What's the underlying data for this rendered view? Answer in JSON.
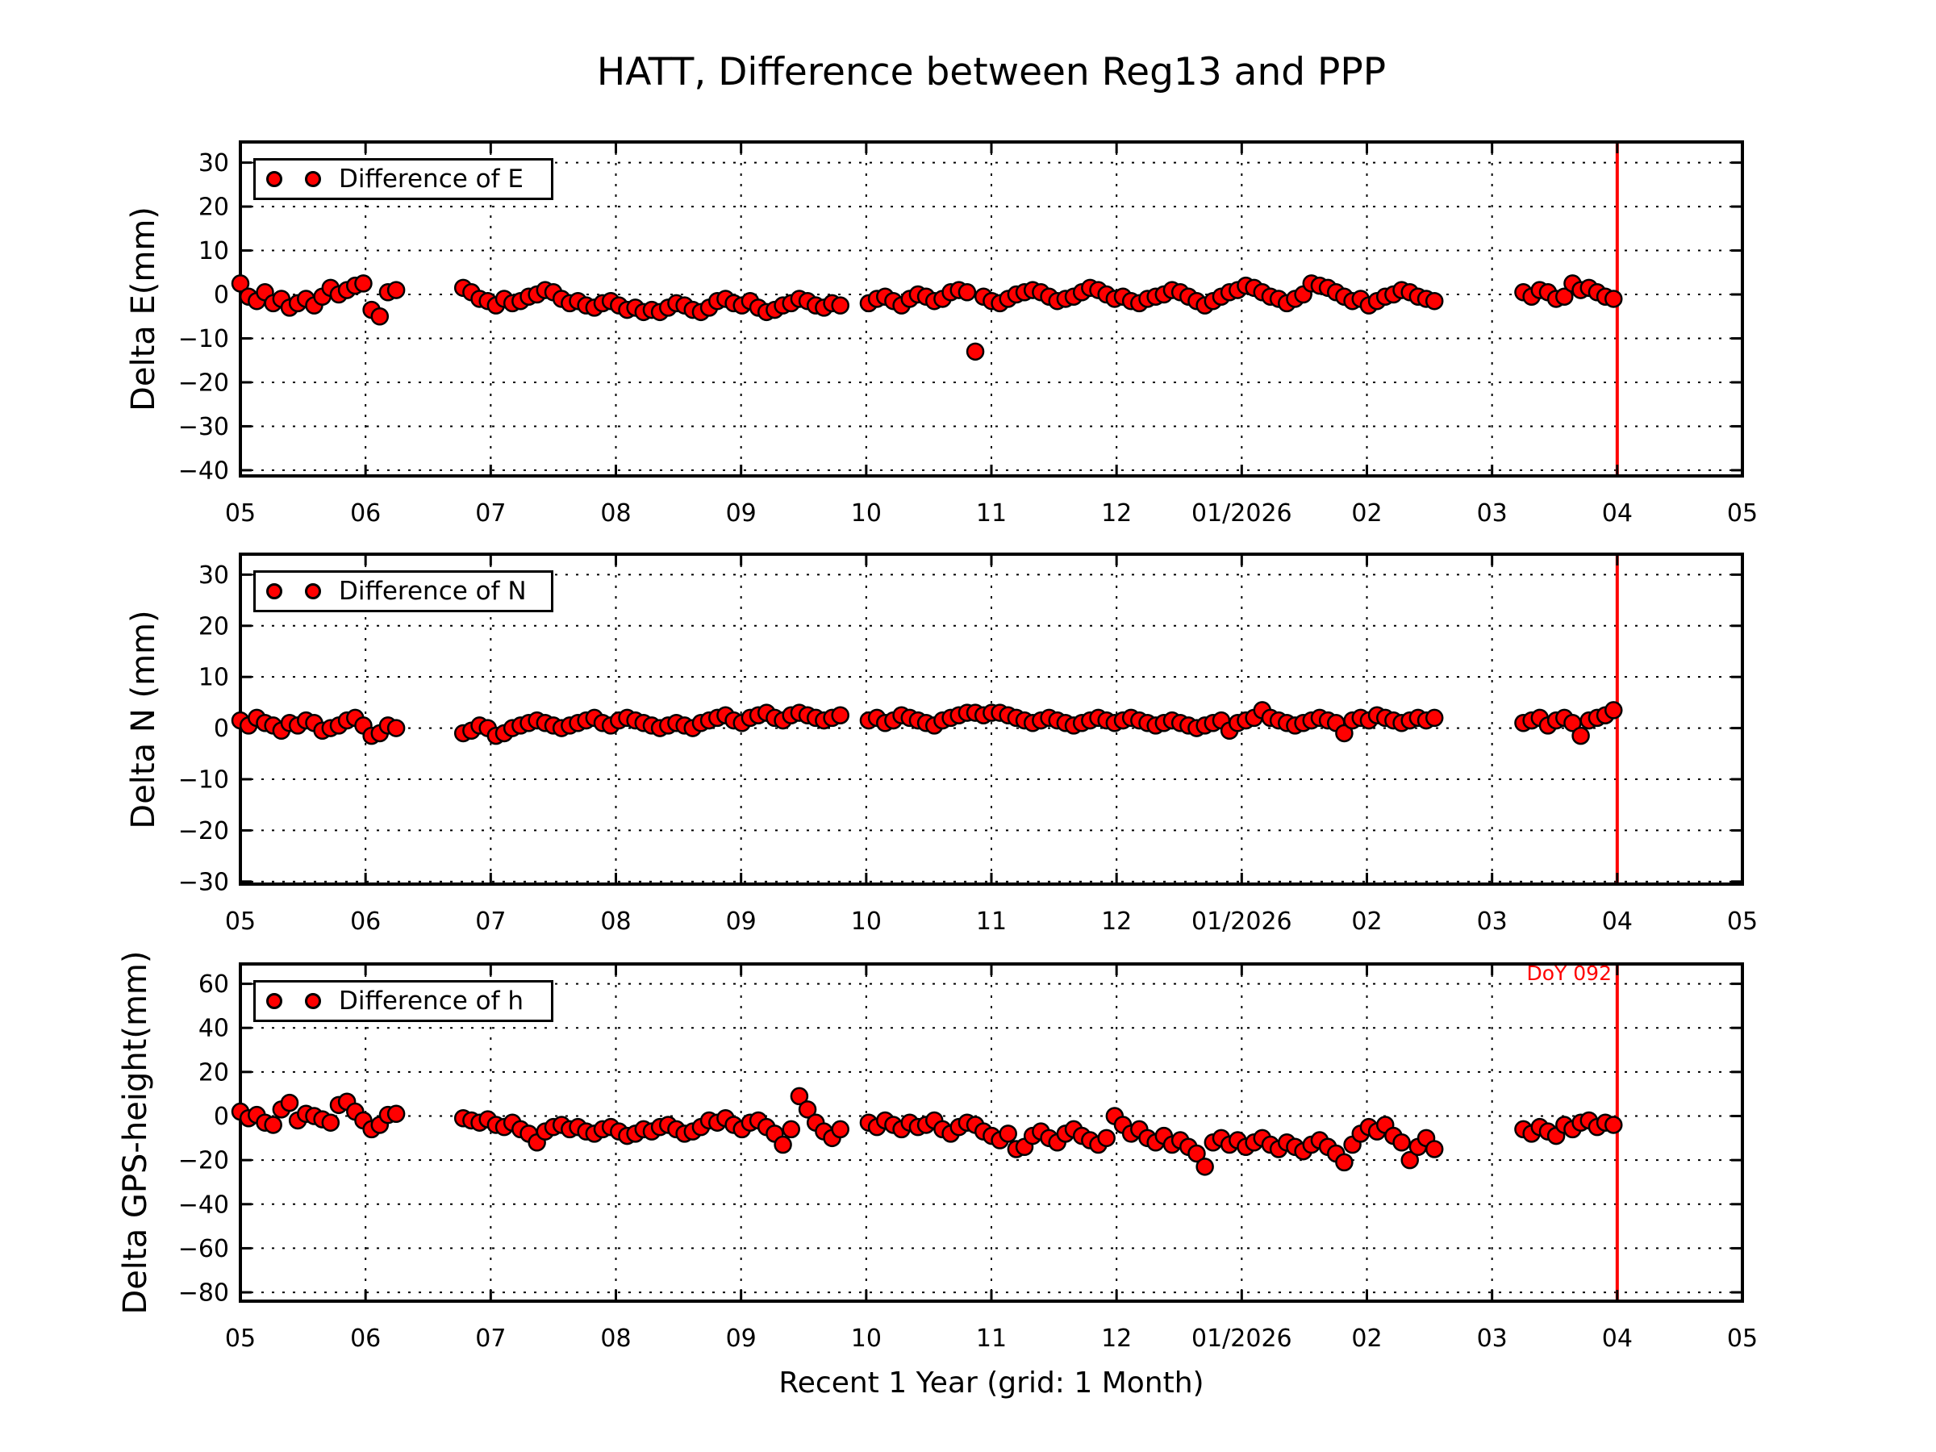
{
  "figure": {
    "title": "HATT, Difference between Reg13 and PPP",
    "xlabel": "Recent 1 Year (grid: 1 Month)",
    "background_color": "#ffffff",
    "marker_color": "#ff0000",
    "marker_edge_color": "#000000",
    "grid_style": "dotted black, 1 gridline per month / per y-tick",
    "vline": {
      "x": 16,
      "color": "#ff0000",
      "label": "DoY 092"
    }
  },
  "annotation": {
    "text": "DoY 092",
    "color": "#ff0000"
  },
  "x_axis": {
    "tick_values": [
      5,
      6,
      7,
      8,
      9,
      10,
      11,
      12,
      13,
      14,
      15,
      16,
      17
    ],
    "tick_labels": [
      "05",
      "06",
      "07",
      "08",
      "09",
      "10",
      "11",
      "12",
      "01/2026",
      "02",
      "03",
      "04",
      "05"
    ],
    "range": [
      5,
      17
    ]
  },
  "chart_data": [
    {
      "type": "scatter",
      "name": "delta-e",
      "ylabel": "Delta E(mm)",
      "legend_label": "Difference of E",
      "ylim": [
        -41.3,
        34.7
      ],
      "yticks": [
        30,
        20,
        10,
        0,
        -10,
        -20,
        -30,
        -40
      ],
      "x_unit": "months, 5=May 2025 ... 16=Apr 2026 (x_step in months ~ 2 days)",
      "segments": [
        {
          "x_start": 5.0,
          "x_step": 0.0655,
          "y": [
            2.5,
            -0.5,
            -1.5,
            0.5,
            -2,
            -1,
            -3,
            -2,
            -1,
            -2.5,
            -0.5,
            1.5,
            0,
            1,
            2,
            2.5,
            -3.5,
            -5,
            0.5,
            1
          ]
        },
        {
          "x_start": 6.78,
          "x_step": 0.0655,
          "y": [
            1.5,
            0.5,
            -1,
            -1.5,
            -2.5,
            -1,
            -2,
            -1.5,
            -0.5,
            0,
            1,
            0.5,
            -1,
            -2,
            -1.5,
            -2.5,
            -3,
            -2,
            -1.5,
            -2.5,
            -3.5,
            -3,
            -4,
            -3.5,
            -4,
            -3,
            -2,
            -2.5,
            -3.5,
            -4,
            -3,
            -1.5,
            -1,
            -2,
            -2.5,
            -1.5,
            -3,
            -4,
            -3.5,
            -2.5,
            -2,
            -1,
            -1.5,
            -2.5,
            -3,
            -2,
            -2.5
          ]
        },
        {
          "x_start": 10.02,
          "x_step": 0.0655,
          "y": [
            -2,
            -1,
            -0.5,
            -1.5,
            -2.5,
            -1,
            0,
            -0.5,
            -1.5,
            -1,
            0.5,
            1,
            0.5,
            -13,
            -0.5,
            -1.5,
            -2,
            -1,
            0,
            0.5,
            1,
            0.5,
            -0.5,
            -1.5,
            -1,
            -0.5,
            0.5,
            1.5,
            1,
            0,
            -1,
            -0.5,
            -1.5,
            -2,
            -1,
            -0.5,
            0,
            1,
            0.5,
            -0.5,
            -1.5,
            -2.5,
            -1.5,
            -0.5,
            0.5,
            1,
            2,
            1.5,
            0.5,
            -0.5,
            -1,
            -2,
            -1,
            0,
            2.5,
            2,
            1.5,
            0.5,
            -0.5,
            -1.5,
            -1,
            -2.5,
            -1.5,
            -0.5,
            0,
            1,
            0.5,
            -0.5,
            -1,
            -1.5
          ]
        },
        {
          "x_start": 15.25,
          "x_step": 0.0655,
          "y": [
            0.5,
            -0.5,
            1,
            0.5,
            -1,
            -0.5,
            2.5,
            1,
            1.5,
            0.5,
            -0.5,
            -1
          ]
        }
      ]
    },
    {
      "type": "scatter",
      "name": "delta-n",
      "ylabel": "Delta N (mm)",
      "legend_label": "Difference of N",
      "ylim": [
        -30.5,
        34
      ],
      "yticks": [
        30,
        20,
        10,
        0,
        -10,
        -20,
        -30
      ],
      "x_unit": "months, 5=May 2025 ... 16=Apr 2026 (x_step in months ~ 2 days)",
      "segments": [
        {
          "x_start": 5.0,
          "x_step": 0.0655,
          "y": [
            1.5,
            0.5,
            2,
            1,
            0.5,
            -0.5,
            1,
            0.5,
            1.5,
            1,
            -0.5,
            0,
            0.5,
            1.5,
            2,
            0.5,
            -1.5,
            -1,
            0.5,
            0
          ]
        },
        {
          "x_start": 6.78,
          "x_step": 0.0655,
          "y": [
            -1,
            -0.5,
            0.5,
            0,
            -1.5,
            -1,
            0,
            0.5,
            1,
            1.5,
            1,
            0.5,
            0,
            0.5,
            1,
            1.5,
            2,
            1,
            0.5,
            1.5,
            2,
            1.5,
            1,
            0.5,
            0,
            0.5,
            1,
            0.5,
            0,
            1,
            1.5,
            2,
            2.5,
            1.5,
            1,
            2,
            2.5,
            3,
            2,
            1.5,
            2.5,
            3,
            2.5,
            2,
            1.5,
            2,
            2.5
          ]
        },
        {
          "x_start": 10.02,
          "x_step": 0.0655,
          "y": [
            1.5,
            2,
            1,
            1.5,
            2.5,
            2,
            1.5,
            1,
            0.5,
            1.5,
            2,
            2.5,
            3,
            3,
            2.5,
            3,
            3,
            2.5,
            2,
            1.5,
            1,
            1.5,
            2,
            1.5,
            1,
            0.5,
            1,
            1.5,
            2,
            1.5,
            1,
            1.5,
            2,
            1.5,
            1,
            0.5,
            1,
            1.5,
            1,
            0.5,
            0,
            0.5,
            1,
            1.5,
            -0.5,
            1,
            1.5,
            2,
            3.5,
            2,
            1.5,
            1,
            0.5,
            1,
            1.5,
            2,
            1.5,
            1,
            -1,
            1.5,
            2,
            1.5,
            2.5,
            2,
            1.5,
            1,
            1.5,
            2,
            1.5,
            2
          ]
        },
        {
          "x_start": 15.25,
          "x_step": 0.0655,
          "y": [
            1,
            1.5,
            2,
            0.5,
            1.5,
            2,
            1,
            -1.5,
            1.5,
            2,
            2.5,
            3.5
          ]
        }
      ]
    },
    {
      "type": "scatter",
      "name": "delta-h",
      "ylabel": "Delta GPS-height(mm)",
      "legend_label": "Difference of h",
      "ylim": [
        -84,
        69
      ],
      "yticks": [
        60,
        40,
        20,
        0,
        -20,
        -40,
        -60,
        -80
      ],
      "x_unit": "months, 5=May 2025 ... 16=Apr 2026 (x_step in months ~ 2 days)",
      "segments": [
        {
          "x_start": 5.0,
          "x_step": 0.0655,
          "y": [
            2,
            -1,
            0.5,
            -3,
            -4,
            3,
            6,
            -2,
            1,
            0,
            -1.5,
            -3,
            5,
            6.5,
            2,
            -2,
            -6,
            -4,
            0.5,
            1
          ]
        },
        {
          "x_start": 6.78,
          "x_step": 0.0655,
          "y": [
            -1,
            -2,
            -3,
            -1.5,
            -4,
            -5,
            -3,
            -6,
            -8,
            -12,
            -7,
            -5,
            -4,
            -6,
            -5,
            -7,
            -8,
            -6,
            -5,
            -7,
            -9,
            -8,
            -6,
            -7,
            -5,
            -4,
            -6,
            -8,
            -7,
            -5,
            -2,
            -3,
            -1,
            -4,
            -6,
            -3,
            -2,
            -5,
            -8,
            -13,
            -6,
            9,
            3,
            -3,
            -7,
            -10,
            -6
          ]
        },
        {
          "x_start": 10.02,
          "x_step": 0.0655,
          "y": [
            -3,
            -5,
            -2,
            -4,
            -6,
            -3,
            -5,
            -4,
            -2,
            -6,
            -8,
            -5,
            -3,
            -4,
            -7,
            -9,
            -11,
            -8,
            -15,
            -14,
            -9,
            -7,
            -10,
            -12,
            -8,
            -6,
            -9,
            -11,
            -13,
            -10,
            0,
            -4,
            -8,
            -6,
            -10,
            -12,
            -9,
            -13,
            -11,
            -14,
            -17,
            -23,
            -12,
            -10,
            -13,
            -11,
            -14,
            -12,
            -10,
            -13,
            -15,
            -12,
            -14,
            -16,
            -13,
            -11,
            -14,
            -17,
            -21,
            -13,
            -8,
            -5,
            -7,
            -4,
            -9,
            -12,
            -20,
            -14,
            -10,
            -15
          ]
        },
        {
          "x_start": 15.25,
          "x_step": 0.0655,
          "y": [
            -6,
            -8,
            -5,
            -7,
            -9,
            -4,
            -6,
            -3,
            -2,
            -5,
            -3,
            -4
          ]
        }
      ]
    }
  ]
}
